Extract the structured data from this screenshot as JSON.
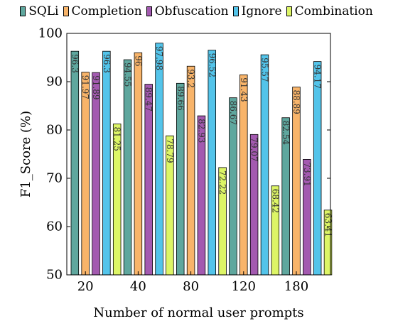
{
  "chart_data": {
    "type": "bar",
    "xlabel": "Number of normal user prompts",
    "ylabel": "F1_Score (%)",
    "ylim": [
      50,
      100
    ],
    "yticks": [
      50,
      60,
      70,
      80,
      90,
      100
    ],
    "categories": [
      "20",
      "40",
      "80",
      "120",
      "180"
    ],
    "grid": false,
    "legend_position": "top",
    "series": [
      {
        "name": "SQLi",
        "color": "#5fa79e",
        "values": [
          96.3,
          94.55,
          89.66,
          86.67,
          82.54
        ]
      },
      {
        "name": "Completion",
        "color": "#f8b46a",
        "values": [
          91.97,
          96,
          93.2,
          91.43,
          88.89
        ]
      },
      {
        "name": "Obfuscation",
        "color": "#a35ab0",
        "values": [
          91.89,
          89.47,
          82.93,
          79.07,
          73.91
        ]
      },
      {
        "name": "Ignore",
        "color": "#53c4ea",
        "values": [
          96.3,
          97.98,
          96.52,
          95.57,
          94.17
        ]
      },
      {
        "name": "Combination",
        "color": "#ddf566",
        "values": [
          81.25,
          78.79,
          72.22,
          68.42,
          63.41
        ]
      }
    ],
    "data_labels": [
      [
        "96.3",
        "94.55",
        "89.66",
        "86.67",
        "82.54"
      ],
      [
        "91.97",
        "96",
        "93.2",
        "91.43",
        "88.89"
      ],
      [
        "91.89",
        "89.47",
        "82.93",
        "79.07",
        "73.91"
      ],
      [
        "96.3",
        "97.98",
        "96.52",
        "95.57",
        "94.17"
      ],
      [
        "81.25",
        "78.79",
        "72.22",
        "68.42",
        "63.41"
      ]
    ]
  }
}
